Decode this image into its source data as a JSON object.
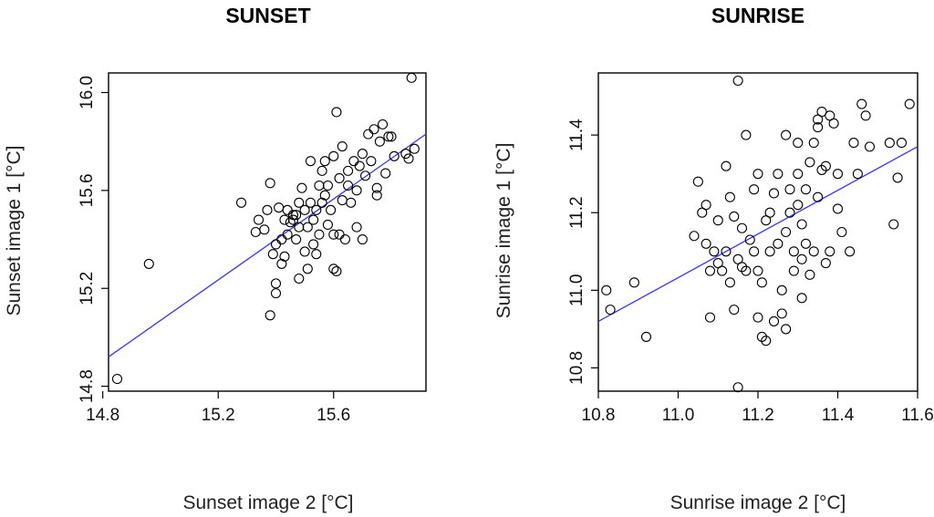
{
  "chart_data": [
    {
      "type": "scatter",
      "title": "SUNSET",
      "xlabel": "Sunset image 2 [°C]",
      "ylabel": "Sunset image 1 [°C]",
      "xlim": [
        14.82,
        15.92
      ],
      "ylim": [
        14.78,
        16.08
      ],
      "xticks": [
        14.8,
        15.2,
        15.6
      ],
      "yticks": [
        14.8,
        15.2,
        15.6,
        16.0
      ],
      "xtick_labels": [
        "14.8",
        "15.2",
        "15.6"
      ],
      "ytick_labels": [
        "14.8",
        "15.2",
        "15.6",
        "16.0"
      ],
      "line_color": "#3535ff",
      "fit": {
        "x": [
          14.82,
          15.92
        ],
        "y": [
          14.92,
          15.83
        ]
      },
      "points": [
        [
          14.85,
          14.83
        ],
        [
          14.96,
          15.3
        ],
        [
          15.28,
          15.55
        ],
        [
          15.33,
          15.43
        ],
        [
          15.34,
          15.48
        ],
        [
          15.36,
          15.44
        ],
        [
          15.37,
          15.52
        ],
        [
          15.38,
          15.63
        ],
        [
          15.38,
          15.09
        ],
        [
          15.39,
          15.34
        ],
        [
          15.4,
          15.22
        ],
        [
          15.4,
          15.18
        ],
        [
          15.4,
          15.38
        ],
        [
          15.41,
          15.53
        ],
        [
          15.42,
          15.4
        ],
        [
          15.42,
          15.3
        ],
        [
          15.43,
          15.33
        ],
        [
          15.43,
          15.48
        ],
        [
          15.44,
          15.42
        ],
        [
          15.44,
          15.52
        ],
        [
          15.45,
          15.47
        ],
        [
          15.46,
          15.5
        ],
        [
          15.46,
          15.48
        ],
        [
          15.47,
          15.4
        ],
        [
          15.47,
          15.5
        ],
        [
          15.48,
          15.55
        ],
        [
          15.48,
          15.45
        ],
        [
          15.48,
          15.24
        ],
        [
          15.49,
          15.61
        ],
        [
          15.5,
          15.35
        ],
        [
          15.5,
          15.52
        ],
        [
          15.51,
          15.28
        ],
        [
          15.51,
          15.45
        ],
        [
          15.52,
          15.55
        ],
        [
          15.52,
          15.72
        ],
        [
          15.53,
          15.38
        ],
        [
          15.53,
          15.48
        ],
        [
          15.54,
          15.34
        ],
        [
          15.54,
          15.52
        ],
        [
          15.55,
          15.62
        ],
        [
          15.55,
          15.42
        ],
        [
          15.56,
          15.68
        ],
        [
          15.56,
          15.55
        ],
        [
          15.57,
          15.72
        ],
        [
          15.57,
          15.58
        ],
        [
          15.58,
          15.46
        ],
        [
          15.58,
          15.62
        ],
        [
          15.59,
          15.52
        ],
        [
          15.6,
          15.28
        ],
        [
          15.6,
          15.42
        ],
        [
          15.6,
          15.74
        ],
        [
          15.61,
          15.27
        ],
        [
          15.61,
          15.92
        ],
        [
          15.62,
          15.65
        ],
        [
          15.62,
          15.42
        ],
        [
          15.63,
          15.78
        ],
        [
          15.63,
          15.56
        ],
        [
          15.64,
          15.4
        ],
        [
          15.65,
          15.62
        ],
        [
          15.65,
          15.68
        ],
        [
          15.66,
          15.55
        ],
        [
          15.67,
          15.72
        ],
        [
          15.68,
          15.45
        ],
        [
          15.68,
          15.6
        ],
        [
          15.69,
          15.7
        ],
        [
          15.7,
          15.4
        ],
        [
          15.7,
          15.75
        ],
        [
          15.71,
          15.66
        ],
        [
          15.72,
          15.83
        ],
        [
          15.73,
          15.72
        ],
        [
          15.74,
          15.85
        ],
        [
          15.75,
          15.61
        ],
        [
          15.75,
          15.58
        ],
        [
          15.76,
          15.8
        ],
        [
          15.77,
          15.87
        ],
        [
          15.78,
          15.67
        ],
        [
          15.79,
          15.82
        ],
        [
          15.8,
          15.82
        ],
        [
          15.81,
          15.74
        ],
        [
          15.85,
          15.75
        ],
        [
          15.86,
          15.73
        ],
        [
          15.88,
          15.77
        ],
        [
          15.87,
          16.06
        ]
      ]
    },
    {
      "type": "scatter",
      "title": "SUNRISE",
      "xlabel": "Sunrise image 2 [°C]",
      "ylabel": "Sunrise image 1 [°C]",
      "xlim": [
        10.8,
        11.6
      ],
      "ylim": [
        10.74,
        11.56
      ],
      "xticks": [
        10.8,
        11.0,
        11.2,
        11.4,
        11.6
      ],
      "yticks": [
        10.8,
        11.0,
        11.2,
        11.4
      ],
      "xtick_labels": [
        "10.8",
        "11.0",
        "11.2",
        "11.4",
        "11.6"
      ],
      "ytick_labels": [
        "10.8",
        "11.0",
        "11.2",
        "11.4"
      ],
      "line_color": "#3535ff",
      "fit": {
        "x": [
          10.8,
          11.6
        ],
        "y": [
          10.92,
          11.37
        ]
      },
      "points": [
        [
          10.82,
          11.0
        ],
        [
          10.83,
          10.95
        ],
        [
          10.89,
          11.02
        ],
        [
          10.92,
          10.88
        ],
        [
          11.04,
          11.14
        ],
        [
          11.05,
          11.28
        ],
        [
          11.06,
          11.2
        ],
        [
          11.07,
          11.22
        ],
        [
          11.07,
          11.12
        ],
        [
          11.08,
          11.05
        ],
        [
          11.08,
          10.93
        ],
        [
          11.09,
          11.1
        ],
        [
          11.1,
          11.07
        ],
        [
          11.1,
          11.18
        ],
        [
          11.11,
          11.05
        ],
        [
          11.12,
          11.32
        ],
        [
          11.12,
          11.1
        ],
        [
          11.13,
          11.02
        ],
        [
          11.13,
          11.24
        ],
        [
          11.14,
          10.95
        ],
        [
          11.14,
          11.19
        ],
        [
          11.15,
          11.54
        ],
        [
          11.15,
          10.75
        ],
        [
          11.15,
          11.08
        ],
        [
          11.16,
          11.16
        ],
        [
          11.16,
          11.06
        ],
        [
          11.17,
          11.4
        ],
        [
          11.17,
          11.05
        ],
        [
          11.18,
          11.13
        ],
        [
          11.19,
          11.26
        ],
        [
          11.19,
          11.1
        ],
        [
          11.2,
          11.05
        ],
        [
          11.2,
          10.93
        ],
        [
          11.2,
          11.3
        ],
        [
          11.21,
          11.02
        ],
        [
          11.21,
          10.88
        ],
        [
          11.22,
          11.18
        ],
        [
          11.22,
          10.87
        ],
        [
          11.23,
          11.1
        ],
        [
          11.23,
          11.2
        ],
        [
          11.24,
          10.92
        ],
        [
          11.24,
          11.25
        ],
        [
          11.25,
          11.3
        ],
        [
          11.25,
          11.12
        ],
        [
          11.26,
          11.0
        ],
        [
          11.26,
          10.94
        ],
        [
          11.27,
          10.9
        ],
        [
          11.27,
          11.4
        ],
        [
          11.27,
          11.15
        ],
        [
          11.28,
          11.2
        ],
        [
          11.28,
          11.26
        ],
        [
          11.29,
          11.1
        ],
        [
          11.29,
          11.05
        ],
        [
          11.3,
          11.22
        ],
        [
          11.3,
          11.38
        ],
        [
          11.3,
          11.3
        ],
        [
          11.31,
          11.08
        ],
        [
          11.31,
          10.98
        ],
        [
          11.31,
          11.17
        ],
        [
          11.32,
          11.12
        ],
        [
          11.32,
          11.26
        ],
        [
          11.33,
          11.04
        ],
        [
          11.33,
          11.33
        ],
        [
          11.34,
          11.1
        ],
        [
          11.34,
          11.38
        ],
        [
          11.35,
          11.24
        ],
        [
          11.35,
          11.42
        ],
        [
          11.35,
          11.44
        ],
        [
          11.36,
          11.31
        ],
        [
          11.36,
          11.46
        ],
        [
          11.37,
          11.07
        ],
        [
          11.37,
          11.32
        ],
        [
          11.38,
          11.45
        ],
        [
          11.38,
          11.1
        ],
        [
          11.39,
          11.43
        ],
        [
          11.4,
          11.3
        ],
        [
          11.4,
          11.21
        ],
        [
          11.41,
          11.15
        ],
        [
          11.43,
          11.1
        ],
        [
          11.44,
          11.38
        ],
        [
          11.45,
          11.3
        ],
        [
          11.46,
          11.48
        ],
        [
          11.47,
          11.45
        ],
        [
          11.48,
          11.37
        ],
        [
          11.53,
          11.38
        ],
        [
          11.54,
          11.17
        ],
        [
          11.55,
          11.29
        ],
        [
          11.56,
          11.38
        ],
        [
          11.58,
          11.48
        ]
      ]
    }
  ]
}
